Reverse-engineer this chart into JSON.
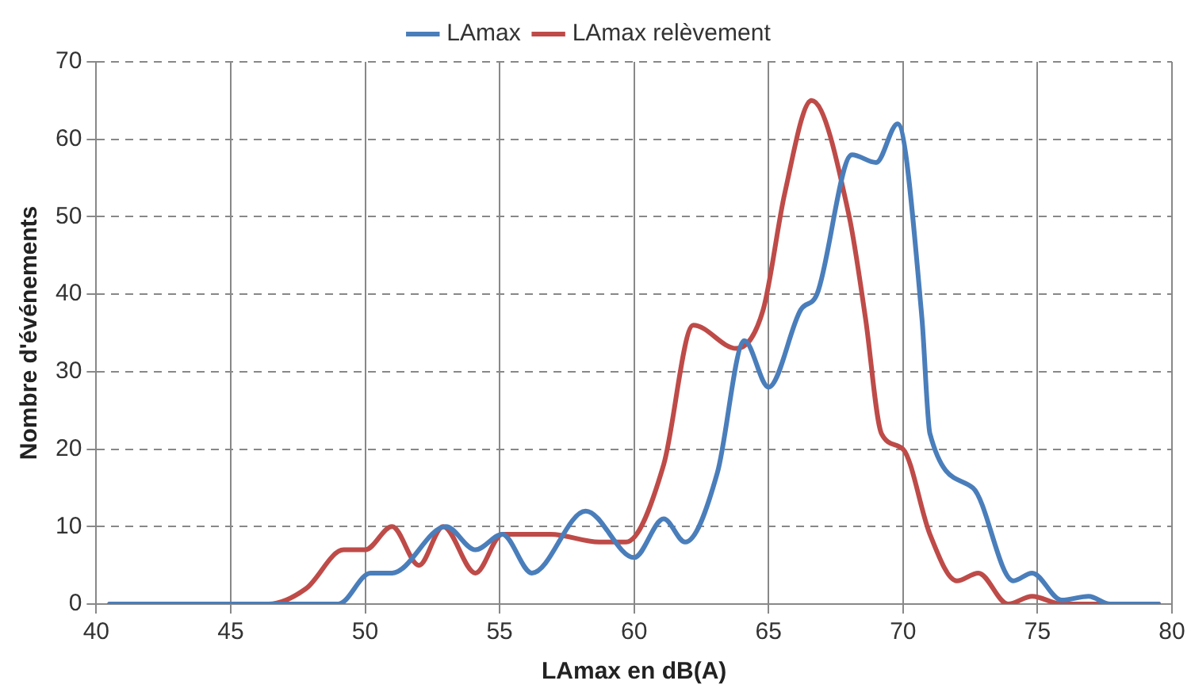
{
  "chart_data": {
    "type": "line",
    "xlabel": "LAmax en dB(A)",
    "ylabel": "Nombre d'événements",
    "xlim": [
      40,
      80
    ],
    "xticks": [
      40,
      45,
      50,
      55,
      60,
      65,
      70,
      75,
      80
    ],
    "ylim": [
      0,
      70
    ],
    "yticks": [
      0,
      10,
      20,
      30,
      40,
      50,
      60,
      70
    ],
    "grid": true,
    "legend": "top",
    "marker": "none",
    "line_style": "solid",
    "series": [
      {
        "name": "LAmax",
        "color": "#4a7ebb",
        "x": [
          40.5,
          45,
          49,
          50.2,
          51,
          53,
          54.1,
          55.1,
          56.2,
          58.2,
          60,
          61.1,
          61.9,
          63.1,
          64.1,
          65,
          66.2,
          66.8,
          68.1,
          69,
          69.8,
          70.7,
          71,
          72.6,
          74.1,
          74.8,
          75.9,
          76.9,
          77.7,
          79.5
        ],
        "values": [
          0,
          0,
          0,
          4,
          4,
          10,
          7,
          9,
          4,
          12,
          6,
          11,
          8,
          17,
          34,
          28,
          38,
          40,
          58,
          57,
          62,
          37,
          22,
          15,
          3,
          4,
          0.5,
          1,
          0,
          0
        ]
      },
      {
        "name": "LAmax relèvement",
        "color": "#be4b48",
        "x": [
          40.5,
          45,
          46.4,
          47.8,
          49.2,
          50,
          51,
          52,
          52.9,
          54.1,
          55.1,
          56.9,
          58.7,
          59.7,
          61.1,
          62.2,
          63.8,
          64.8,
          65.6,
          66.6,
          68,
          68.6,
          69.2,
          70,
          71,
          72,
          72.8,
          73.9,
          74.8,
          75.9,
          79.5
        ],
        "values": [
          0,
          0,
          0,
          2,
          7,
          7,
          10,
          5,
          10,
          4,
          9,
          9,
          8,
          8,
          18,
          36,
          33,
          38,
          53,
          65,
          50,
          37,
          22,
          20,
          9,
          3,
          4,
          0,
          1,
          0,
          0
        ]
      }
    ]
  }
}
